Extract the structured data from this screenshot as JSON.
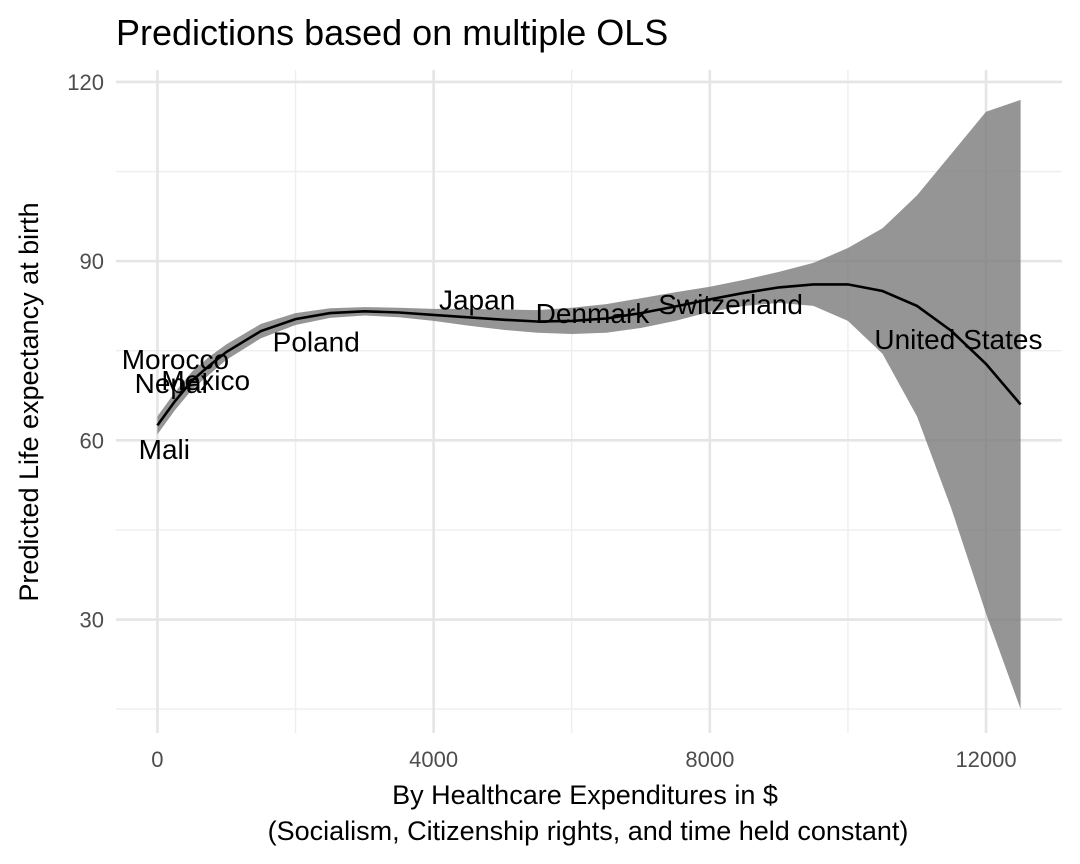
{
  "chart_data": {
    "type": "line",
    "title": "Predictions based on multiple OLS",
    "xlabel": "By Healthcare Expenditures in $",
    "xlabel_sub": "(Socialism, Citizenship rights, and time held constant)",
    "ylabel": "Predicted Life expectancy at birth",
    "xlim": [
      -600,
      13100
    ],
    "ylim": [
      11,
      122
    ],
    "x_ticks": [
      0,
      4000,
      8000,
      12000
    ],
    "x_tick_labels": [
      "0",
      "4000",
      "8000",
      "12000"
    ],
    "x_minor_ticks": [
      2000,
      6000,
      10000
    ],
    "y_ticks": [
      30,
      60,
      90,
      120
    ],
    "y_tick_labels": [
      "30",
      "60",
      "90",
      "120"
    ],
    "y_minor_ticks": [
      15,
      45,
      75,
      105
    ],
    "grid": true,
    "series": [
      {
        "x": [
          0,
          250,
          500,
          750,
          1000,
          1500,
          2000,
          2500,
          3000,
          3500,
          4000,
          4500,
          5000,
          5500,
          6000,
          6500,
          7000,
          7500,
          8000,
          8500,
          9000,
          9500,
          10000,
          10500,
          11000,
          11500,
          12000,
          12500
        ],
        "y": [
          62.5,
          66.5,
          70,
          72.5,
          74.8,
          78.3,
          80.3,
          81.3,
          81.6,
          81.4,
          81.0,
          80.6,
          80.2,
          79.9,
          80.0,
          80.4,
          81.3,
          82.4,
          83.6,
          84.7,
          85.6,
          86.1,
          86.1,
          85.0,
          82.5,
          78.3,
          72.8,
          66.0
        ],
        "ci_lower": [
          61.0,
          65.0,
          68.5,
          71.0,
          73.5,
          77.1,
          79.3,
          80.5,
          80.9,
          80.6,
          80.0,
          79.2,
          78.5,
          78.0,
          77.8,
          78.0,
          78.8,
          80.0,
          81.5,
          82.5,
          83.0,
          82.5,
          80.0,
          74.5,
          64.0,
          48.5,
          31.0,
          15.0
        ],
        "ci_upper": [
          64.0,
          68.0,
          71.5,
          74.0,
          76.1,
          79.5,
          81.3,
          82.1,
          82.3,
          82.2,
          82.0,
          82.0,
          81.9,
          81.8,
          82.2,
          82.8,
          83.8,
          84.8,
          85.7,
          86.9,
          88.2,
          89.7,
          92.2,
          95.5,
          101.0,
          108.0,
          115.0,
          117.0
        ]
      }
    ],
    "annotations": [
      {
        "label": "Morocco",
        "x": 260,
        "y": 73.5
      },
      {
        "label": "Nepal",
        "x": 200,
        "y": 69.5
      },
      {
        "label": "Mexico",
        "x": 700,
        "y": 70
      },
      {
        "label": "Mali",
        "x": 100,
        "y": 58.5
      },
      {
        "label": "Poland",
        "x": 2300,
        "y": 76.5
      },
      {
        "label": "Japan",
        "x": 4630,
        "y": 83.5
      },
      {
        "label": "Denmark",
        "x": 6300,
        "y": 81.2
      },
      {
        "label": "Switzerland",
        "x": 8300,
        "y": 82.7
      },
      {
        "label": "United States",
        "x": 11600,
        "y": 76.9
      }
    ]
  }
}
